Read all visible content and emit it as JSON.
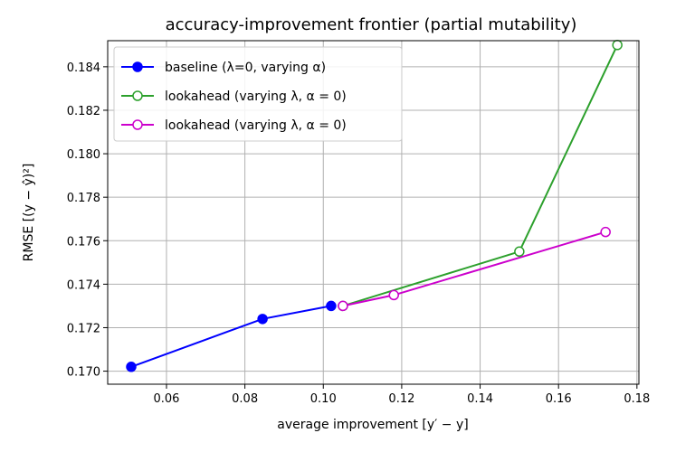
{
  "chart_data": {
    "type": "line",
    "title": "accuracy-improvement frontier (partial mutability)",
    "xlabel": "average improvement [y′ − y]",
    "ylabel": "RMSE [(y − ŷ)²]",
    "xlim": [
      0.045,
      0.1805
    ],
    "ylim": [
      0.1694,
      0.1852
    ],
    "xticks": [
      0.06,
      0.08,
      0.1,
      0.12,
      0.14,
      0.16,
      0.18
    ],
    "xtick_labels": [
      "0.06",
      "0.08",
      "0.10",
      "0.12",
      "0.14",
      "0.16",
      "0.18"
    ],
    "yticks": [
      0.17,
      0.172,
      0.174,
      0.176,
      0.178,
      0.18,
      0.182,
      0.184
    ],
    "ytick_labels": [
      "0.170",
      "0.172",
      "0.174",
      "0.176",
      "0.178",
      "0.180",
      "0.182",
      "0.184"
    ],
    "grid": true,
    "legend_position": "top-left",
    "series": [
      {
        "name": "baseline (λ=0, varying α)",
        "color": "#0000ff",
        "marker": "filled-circle",
        "x": [
          0.051,
          0.0845,
          0.102
        ],
        "y": [
          0.1702,
          0.1724,
          0.173
        ]
      },
      {
        "name": "lookahead (varying λ, α = 0)",
        "color": "#2ca02c",
        "marker": "open-circle",
        "x": [
          0.105,
          0.15,
          0.175
        ],
        "y": [
          0.173,
          0.1755,
          0.185
        ]
      },
      {
        "name": "lookahead (varying λ, α = 0)",
        "color": "#cc00cc",
        "marker": "open-circle",
        "x": [
          0.105,
          0.118,
          0.172
        ],
        "y": [
          0.173,
          0.1735,
          0.1764
        ]
      }
    ]
  }
}
